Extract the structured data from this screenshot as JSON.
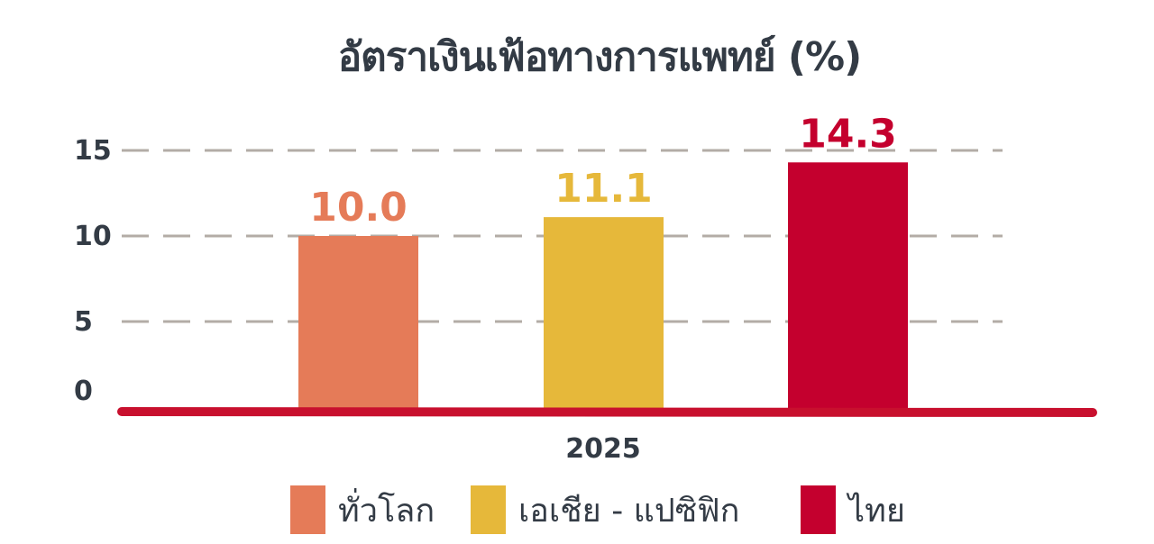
{
  "chart_data": {
    "type": "bar",
    "title": "อัตราเงินเฟ้อทางการแพทย์ (%)",
    "categories": [
      "2025"
    ],
    "series": [
      {
        "name": "ทั่วโลก",
        "values": [
          10.0
        ],
        "value_label": "10.0",
        "color": "#e57b58"
      },
      {
        "name": "เอเชีย - แปซิฟิก",
        "values": [
          11.1
        ],
        "value_label": "11.1",
        "color": "#e6b83a"
      },
      {
        "name": "ไทย",
        "values": [
          14.3
        ],
        "value_label": "14.3",
        "color": "#c4002e"
      }
    ],
    "ylim": [
      0,
      15
    ],
    "yticks": [
      "0",
      "5",
      "10",
      "15"
    ],
    "grid": true,
    "legend": "bottom",
    "colors": {
      "axis": "#c8102e",
      "grid": "#b3aca6",
      "text": "#333b45"
    }
  }
}
